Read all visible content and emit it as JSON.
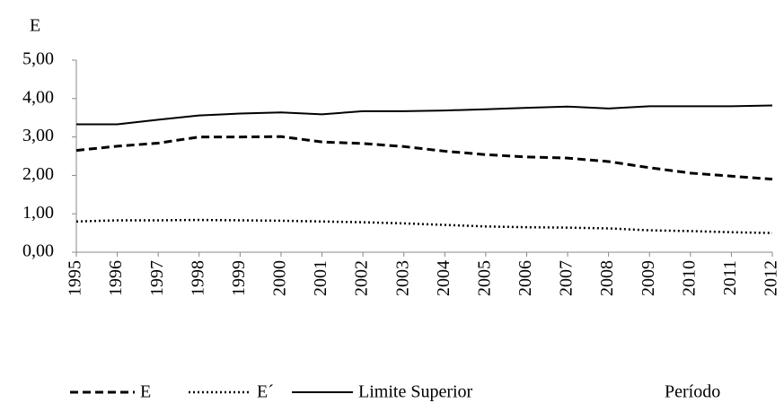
{
  "chart_data": {
    "type": "line",
    "y_axis_label": "E",
    "x_axis_label": "Período",
    "categories": [
      "1995",
      "1996",
      "1997",
      "1998",
      "1999",
      "2000",
      "2001",
      "2002",
      "2003",
      "2004",
      "2005",
      "2006",
      "2007",
      "2008",
      "2009",
      "2010",
      "2011",
      "2012"
    ],
    "series": [
      {
        "name": "E",
        "color": "#000000",
        "style": "dashed",
        "values": [
          2.65,
          2.76,
          2.84,
          3.0,
          3.0,
          3.01,
          2.87,
          2.83,
          2.75,
          2.63,
          2.54,
          2.48,
          2.45,
          2.36,
          2.2,
          2.06,
          1.98,
          1.9
        ]
      },
      {
        "name": "E´",
        "color": "#000000",
        "style": "dotted",
        "values": [
          0.8,
          0.83,
          0.83,
          0.84,
          0.83,
          0.82,
          0.8,
          0.78,
          0.75,
          0.71,
          0.67,
          0.65,
          0.64,
          0.62,
          0.57,
          0.55,
          0.52,
          0.5
        ]
      },
      {
        "name": "Limite Superior",
        "color": "#000000",
        "style": "solid",
        "values": [
          3.33,
          3.33,
          3.45,
          3.56,
          3.61,
          3.64,
          3.59,
          3.67,
          3.67,
          3.69,
          3.72,
          3.76,
          3.79,
          3.74,
          3.8,
          3.8,
          3.8,
          3.82
        ]
      }
    ],
    "ylim": [
      0,
      5
    ],
    "yticks": [
      {
        "value": 0,
        "label": "0,00"
      },
      {
        "value": 1,
        "label": "1,00"
      },
      {
        "value": 2,
        "label": "2,00"
      },
      {
        "value": 3,
        "label": "3,00"
      },
      {
        "value": 4,
        "label": "4,00"
      },
      {
        "value": 5,
        "label": "5,00"
      }
    ],
    "grid": false,
    "legend": "bottom"
  }
}
